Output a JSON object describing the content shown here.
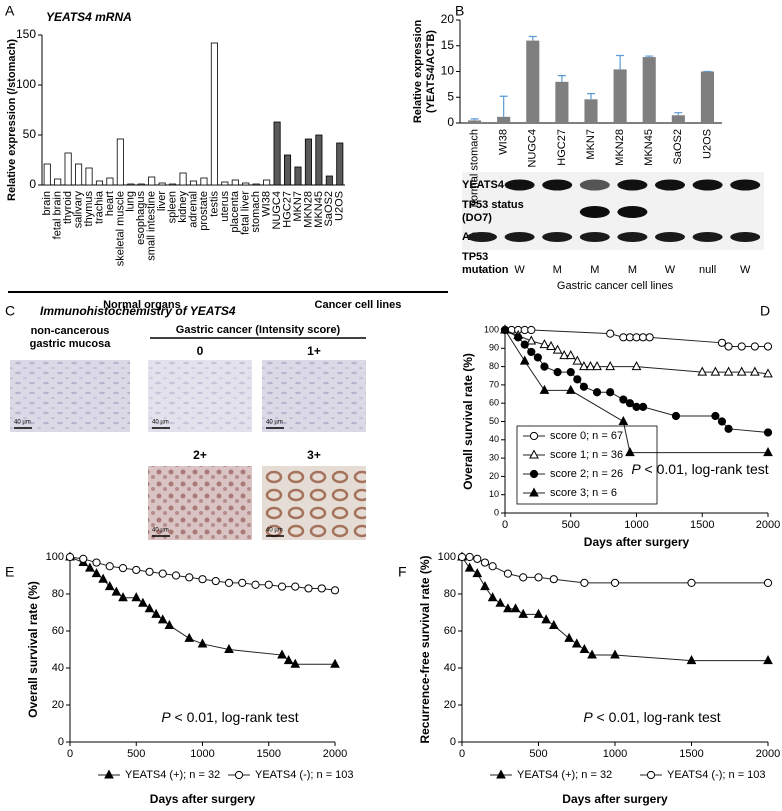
{
  "panels": [
    "A",
    "B",
    "C",
    "D",
    "E",
    "F"
  ],
  "chart_data": [
    {
      "type": "bar",
      "title": "YEATS4 mRNA",
      "ylabel": "Relative expression (/stomach)",
      "categories": [
        "brain",
        "fetal brain",
        "thyroid",
        "salivary",
        "thymus",
        "trachia",
        "heart",
        "skeletal muscle",
        "lung",
        "esophagus",
        "small intestine",
        "liver",
        "spleen",
        "kidney",
        "adrenal",
        "prostate",
        "testis",
        "uterus",
        "placenta",
        "fetal liver",
        "stomach",
        "WI38",
        "NUGC4",
        "HGC27",
        "MKN7",
        "MKN28",
        "MKN45",
        "SaOS2",
        "U2OS"
      ],
      "series": [
        {
          "name": "Normal organs",
          "color": "#ffffff",
          "values": [
            21,
            6,
            32,
            21,
            17,
            4,
            7,
            46,
            1,
            1,
            8,
            2,
            1,
            12,
            4,
            7,
            142,
            3,
            5,
            2,
            1,
            5,
            null,
            null,
            null,
            null,
            null,
            null,
            null
          ]
        },
        {
          "name": "Cancer cell lines",
          "color": "#595959",
          "values": [
            null,
            null,
            null,
            null,
            null,
            null,
            null,
            null,
            null,
            null,
            null,
            null,
            null,
            null,
            null,
            null,
            null,
            null,
            null,
            null,
            null,
            null,
            63,
            30,
            18,
            46,
            50,
            9,
            42
          ]
        }
      ],
      "ylim": [
        0,
        150
      ],
      "yticks": [
        0,
        50,
        100,
        150
      ]
    },
    {
      "type": "bar",
      "ylabel": [
        "Relative expression",
        "(YEATS4/ACTB)"
      ],
      "categories": [
        "normal stomach",
        "WI38",
        "NUGC4",
        "HGC27",
        "MKN7",
        "MKN28",
        "MKN45",
        "SaOS2",
        "U2OS"
      ],
      "values": [
        0.5,
        1.2,
        16,
        8,
        4.6,
        10.4,
        12.8,
        1.5,
        10
      ],
      "errors": [
        0.3,
        4,
        0.8,
        1.2,
        1.1,
        2.7,
        0.2,
        0.5,
        0
      ],
      "color": "#7f7f7f",
      "error_color": "#5b9bd5",
      "ylim": [
        0,
        20
      ],
      "yticks": [
        0,
        5,
        10,
        15,
        20
      ]
    },
    {
      "type": "line",
      "ylabel": "Overall survival rate (%)",
      "xlabel": "Days after surgery",
      "series": [
        {
          "name": "score 0; n = 67",
          "marker": "circle-open",
          "x": [
            0,
            50,
            100,
            150,
            200,
            800,
            900,
            950,
            1000,
            1050,
            1100,
            1650,
            1700,
            1800,
            1900,
            2000
          ],
          "values": [
            100,
            100,
            100,
            100,
            100,
            98,
            96,
            96,
            96,
            96,
            96,
            93,
            91,
            91,
            91,
            91
          ]
        },
        {
          "name": "score 1; n = 36",
          "marker": "triangle-open",
          "x": [
            0,
            100,
            200,
            300,
            350,
            400,
            450,
            500,
            550,
            600,
            650,
            700,
            800,
            1000,
            1500,
            1600,
            1700,
            1800,
            1900,
            2000
          ],
          "values": [
            100,
            97,
            94,
            92,
            91,
            89,
            86,
            86,
            83,
            80,
            80,
            80,
            80,
            80,
            77,
            77,
            77,
            77,
            77,
            76
          ]
        },
        {
          "name": "score 2; n = 26",
          "marker": "circle-filled",
          "x": [
            0,
            100,
            150,
            200,
            250,
            300,
            400,
            500,
            550,
            600,
            700,
            800,
            900,
            950,
            1000,
            1050,
            1300,
            1600,
            1650,
            1700,
            2000
          ],
          "values": [
            100,
            96,
            92,
            88,
            85,
            80,
            77,
            77,
            73,
            69,
            66,
            66,
            62,
            60,
            58,
            58,
            53,
            53,
            50,
            46,
            44
          ]
        },
        {
          "name": "score 3; n = 6",
          "marker": "triangle-filled",
          "x": [
            0,
            150,
            300,
            500,
            900,
            950,
            2000
          ],
          "values": [
            100,
            83,
            67,
            67,
            50,
            33,
            33
          ]
        }
      ],
      "xlim": [
        0,
        2000
      ],
      "xticks": [
        0,
        500,
        1000,
        1500,
        2000
      ],
      "ylim": [
        0,
        100
      ],
      "yticks": [
        0,
        10,
        20,
        30,
        40,
        50,
        60,
        70,
        80,
        90,
        100
      ],
      "annotation": {
        "italic": "P",
        "text": "< 0.01, log-rank test"
      }
    },
    {
      "type": "line",
      "ylabel": "Overall survival rate (%)",
      "xlabel": "Days after surgery",
      "series": [
        {
          "name": "YEATS4 (+); n = 32",
          "marker": "triangle-filled",
          "x": [
            0,
            100,
            150,
            200,
            250,
            300,
            350,
            400,
            500,
            550,
            600,
            650,
            700,
            750,
            900,
            1000,
            1200,
            1600,
            1650,
            1700,
            2000
          ],
          "values": [
            100,
            97,
            94,
            91,
            88,
            84,
            81,
            78,
            78,
            75,
            72,
            69,
            66,
            63,
            56,
            53,
            50,
            47,
            44,
            42,
            42
          ]
        },
        {
          "name": "YEATS4 (-); n = 103",
          "marker": "circle-open",
          "x": [
            0,
            100,
            200,
            300,
            400,
            500,
            600,
            700,
            800,
            900,
            1000,
            1100,
            1200,
            1300,
            1400,
            1500,
            1600,
            1700,
            1800,
            1900,
            2000
          ],
          "values": [
            100,
            99,
            97,
            95,
            94,
            93,
            92,
            91,
            90,
            89,
            88,
            87,
            86,
            86,
            85,
            85,
            84,
            84,
            83,
            83,
            82
          ]
        }
      ],
      "xlim": [
        0,
        2000
      ],
      "xticks": [
        0,
        500,
        1000,
        1500,
        2000
      ],
      "ylim": [
        0,
        100
      ],
      "yticks": [
        0,
        20,
        40,
        60,
        80,
        100
      ],
      "annotation": {
        "italic": "P",
        "text": "< 0.01, log-rank test"
      }
    },
    {
      "type": "line",
      "ylabel": "Recurrence-free survival rate (%)",
      "xlabel": "Days after surgery",
      "series": [
        {
          "name": "YEATS4 (+); n = 32",
          "marker": "triangle-filled",
          "x": [
            0,
            50,
            100,
            150,
            200,
            250,
            300,
            350,
            400,
            500,
            550,
            600,
            700,
            750,
            800,
            850,
            1000,
            1500,
            2000
          ],
          "values": [
            100,
            94,
            91,
            84,
            78,
            75,
            72,
            72,
            69,
            69,
            66,
            63,
            56,
            53,
            50,
            47,
            47,
            44,
            44
          ]
        },
        {
          "name": "YEATS4 (-); n = 103",
          "marker": "circle-open",
          "x": [
            0,
            50,
            100,
            150,
            200,
            300,
            400,
            500,
            600,
            800,
            1000,
            1500,
            2000
          ],
          "values": [
            100,
            100,
            99,
            97,
            95,
            91,
            89,
            89,
            88,
            86,
            86,
            86,
            86
          ]
        }
      ],
      "xlim": [
        0,
        2000
      ],
      "xticks": [
        0,
        500,
        1000,
        1500,
        2000
      ],
      "ylim": [
        0,
        100
      ],
      "yticks": [
        0,
        20,
        40,
        60,
        80,
        100
      ],
      "annotation": {
        "italic": "P",
        "text": "< 0.01, log-rank test"
      }
    }
  ],
  "blot": {
    "rows": [
      "YEATS4",
      [
        "TP53 status",
        "(DO7)"
      ],
      "ACTB",
      [
        "TP53",
        "mutation"
      ]
    ],
    "mutation": [
      "-",
      "W",
      "M",
      "M",
      "M",
      "W",
      "null",
      "W"
    ],
    "group": "Gastric cancer  cell lines"
  },
  "ihc": {
    "title": "Immunohistochemistry of YEATS4",
    "normal": [
      "non-cancerous",
      "gastric mucosa"
    ],
    "cancer": "Gastric cancer (Intensity score)",
    "scores": [
      "0",
      "1+",
      "2+",
      "3+"
    ],
    "scale": "40 µm"
  }
}
